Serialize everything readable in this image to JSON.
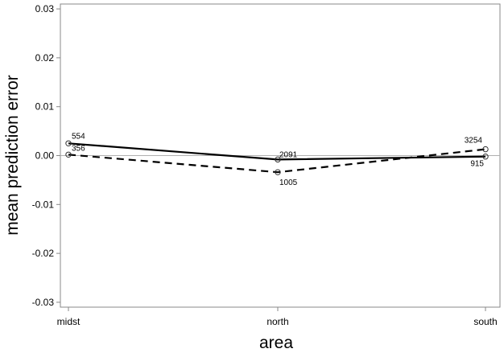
{
  "chart_data": {
    "type": "line",
    "categories": [
      "midst",
      "north",
      "south"
    ],
    "series": [
      {
        "style": "solid",
        "values": [
          0.0025,
          -0.0008,
          -0.0002
        ],
        "counts": [
          "554",
          "2091",
          "915"
        ]
      },
      {
        "style": "dashed",
        "values": [
          0.0002,
          -0.0034,
          0.0013
        ],
        "counts": [
          "356",
          "1005",
          "3254"
        ]
      }
    ],
    "xlabel": "area",
    "ylabel": "mean prediction error",
    "ylim": [
      -0.031,
      0.031
    ],
    "yticks": [
      -0.03,
      -0.02,
      -0.01,
      0.0,
      0.01,
      0.02,
      0.03
    ],
    "ytick_labels": [
      "-0.03",
      "-0.02",
      "-0.01",
      "0.00",
      "0.01",
      "0.02",
      "0.03"
    ],
    "reference_line": 0,
    "grid": false,
    "legend": "none",
    "colors": {
      "series": "#000000",
      "frame": "#888888",
      "reference": "#b0b0b0"
    }
  }
}
